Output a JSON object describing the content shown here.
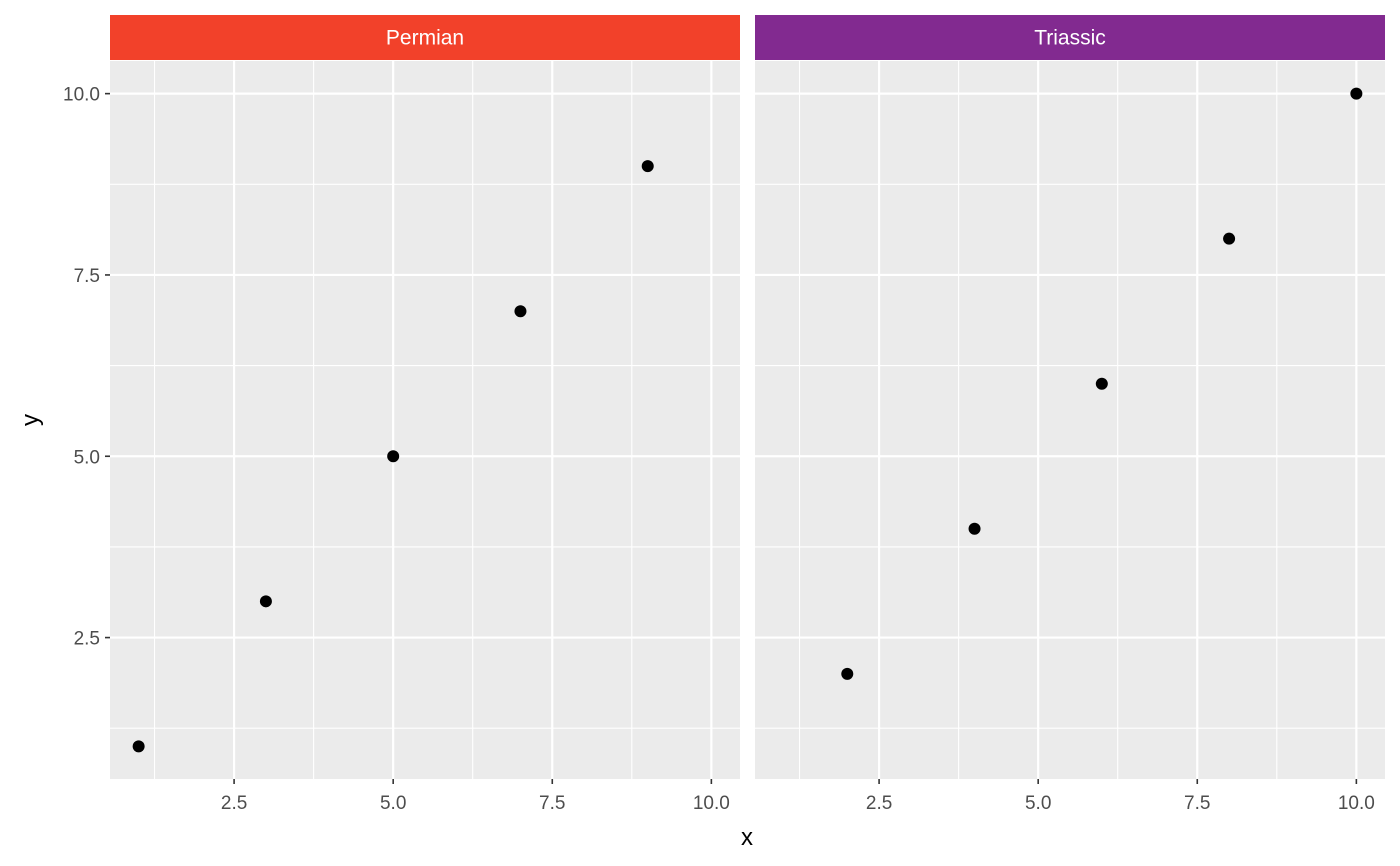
{
  "chart_data": {
    "type": "scatter",
    "xlabel": "x",
    "ylabel": "y",
    "xlim": [
      0.55,
      10.45
    ],
    "ylim": [
      0.55,
      10.45
    ],
    "x_ticks": [
      2.5,
      5.0,
      7.5,
      10.0
    ],
    "x_tick_labels": [
      "2.5",
      "5.0",
      "7.5",
      "10.0"
    ],
    "y_ticks": [
      2.5,
      5.0,
      7.5,
      10.0
    ],
    "y_tick_labels": [
      "2.5",
      "5.0",
      "7.5",
      "10.0"
    ],
    "grid": true,
    "facets": [
      {
        "name": "Permian",
        "strip_color": "#F2412A",
        "x": [
          1,
          3,
          5,
          7,
          9
        ],
        "y": [
          1,
          3,
          5,
          7,
          9
        ]
      },
      {
        "name": "Triassic",
        "strip_color": "#822A90",
        "x": [
          2,
          4,
          6,
          8,
          10
        ],
        "y": [
          2,
          4,
          6,
          8,
          10
        ]
      }
    ],
    "point_color": "#000000",
    "panel_background": "#EBEBEB",
    "grid_color": "#FFFFFF"
  }
}
